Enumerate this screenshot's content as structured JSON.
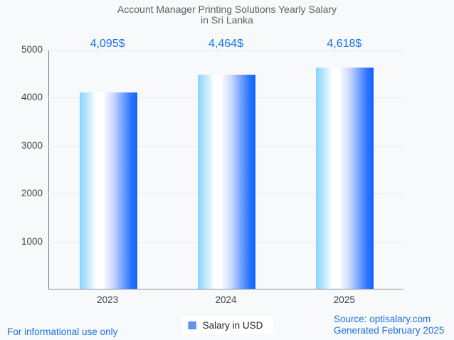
{
  "title": {
    "line1": "Account Manager Printing Solutions Yearly Salary",
    "line2": "in Sri Lanka"
  },
  "chart_data": {
    "type": "bar",
    "categories": [
      "2023",
      "2024",
      "2025"
    ],
    "series": [
      {
        "name": "Salary in USD",
        "values": [
          4095,
          4464,
          4618
        ]
      }
    ],
    "value_labels": [
      "4,095$",
      "4,464$",
      "4,618$"
    ],
    "title": "Account Manager Printing Solutions Yearly Salary in Sri Lanka",
    "xlabel": "",
    "ylabel": "",
    "ylim": [
      0,
      5000
    ],
    "yticks": [
      1000,
      2000,
      3000,
      4000,
      5000
    ],
    "grid": true,
    "legend_position": "bottom"
  },
  "legend": {
    "label": "Salary in USD"
  },
  "footer": {
    "left_note": "For informational use only",
    "source_line": "Source: optisalary.com",
    "generated_line": "Generated February 2025"
  },
  "colors": {
    "accent_blue": "#1a73e8",
    "bar_gradient_left": "#85d6fe",
    "bar_gradient_mid": "#ffffff",
    "bar_gradient_right": "#0d64ff",
    "title_gray": "#616161",
    "grid_gray": "#e4e7eb",
    "axis_gray": "#787d84",
    "tick_label_gray": "#3c4043",
    "legend_swatch": "#5e97f0",
    "background": "#f8f9fb"
  }
}
